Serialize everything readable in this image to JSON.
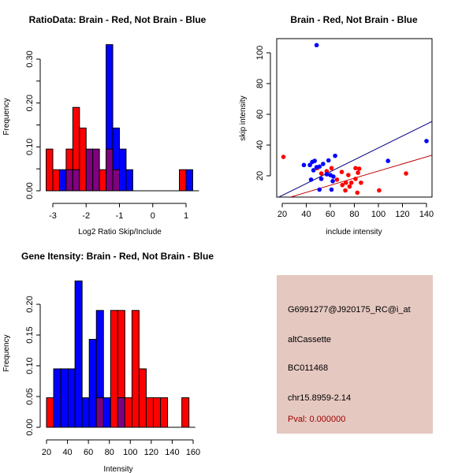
{
  "chart_data": [
    {
      "type": "bar",
      "subtype": "overlaid-histogram",
      "title": "RatioData: Brain - Red, Not Brain - Blue",
      "xlabel": "Log2 Ratio Skip/Include",
      "ylabel": "Frequency",
      "xlim": [
        -3.2,
        1.2
      ],
      "ylim": [
        0,
        0.35
      ],
      "xticks": [
        -3,
        -2,
        -1,
        0,
        1
      ],
      "xtick_labels": [
        "-3",
        "-2",
        "-1",
        "0",
        "1"
      ],
      "yticks": [
        0,
        0.1,
        0.2,
        0.3
      ],
      "ytick_labels": [
        "0.00",
        "0.10",
        "0.20",
        "0.30"
      ],
      "bin_width": 0.2,
      "bin_starts": [
        -3.2,
        -3.0,
        -2.8,
        -2.6,
        -2.4,
        -2.2,
        -2.0,
        -1.8,
        -1.6,
        -1.4,
        -1.2,
        -1.0,
        -0.8,
        -0.6,
        0.8,
        1.0
      ],
      "series": [
        {
          "name": "Brain",
          "color": "#ff0000",
          "values": [
            0.095,
            0.048,
            0,
            0.095,
            0.19,
            0.143,
            0.095,
            0.095,
            0.048,
            0.095,
            0.048,
            0,
            0,
            0,
            0.048,
            0
          ]
        },
        {
          "name": "Not Brain",
          "color": "#0000ff",
          "values": [
            0,
            0,
            0.048,
            0.048,
            0.048,
            0,
            0.095,
            0.095,
            0,
            0.333,
            0.143,
            0.095,
            0.048,
            0,
            0,
            0.048
          ]
        }
      ],
      "overlap_color": "#800080"
    },
    {
      "type": "scatter",
      "title": "Brain - Red, Not Brain - Blue",
      "xlabel": "include intensity",
      "ylabel": "skip intensity",
      "xlim": [
        15,
        145
      ],
      "ylim": [
        5,
        110
      ],
      "xticks": [
        20,
        40,
        60,
        80,
        100,
        120,
        140
      ],
      "xtick_labels": [
        "20",
        "40",
        "60",
        "80",
        "100",
        "120",
        "140"
      ],
      "yticks": [
        20,
        40,
        60,
        80,
        100
      ],
      "ytick_labels": [
        "20",
        "40",
        "60",
        "80",
        "100"
      ],
      "series": [
        {
          "name": "Brain",
          "color": "#ff0000",
          "points": [
            [
              21,
              32.3
            ],
            [
              49,
              25
            ],
            [
              57,
              23
            ],
            [
              61,
              25
            ],
            [
              65.5,
              17.5
            ],
            [
              69.5,
              22.5
            ],
            [
              73,
              15.5
            ],
            [
              75,
              20.5
            ],
            [
              77.5,
              15.5
            ],
            [
              76,
              13
            ],
            [
              81,
              18
            ],
            [
              81,
              25
            ],
            [
              83,
              22
            ],
            [
              84,
              24.6
            ],
            [
              85.5,
              15.5
            ],
            [
              82.5,
              9
            ],
            [
              72.5,
              10.5
            ],
            [
              70,
              14
            ],
            [
              100.6,
              10.5
            ],
            [
              123,
              21.5
            ],
            [
              52.5,
              21.5
            ]
          ],
          "fit_line": [
            [
              24,
              5.5
            ],
            [
              145,
              33.5
            ]
          ]
        },
        {
          "name": "Not Brain",
          "color": "#0000ff",
          "points": [
            [
              48.6,
              105
            ],
            [
              140,
              42.6
            ],
            [
              108,
              29.7
            ],
            [
              38,
              27
            ],
            [
              45,
              29
            ],
            [
              47,
              29.7
            ],
            [
              43,
              27
            ],
            [
              46,
              23.6
            ],
            [
              48.6,
              25.6
            ],
            [
              51,
              26
            ],
            [
              54,
              27.7
            ],
            [
              58.5,
              30
            ],
            [
              64,
              33
            ],
            [
              52.5,
              18
            ],
            [
              57,
              21
            ],
            [
              60,
              20.5
            ],
            [
              62.5,
              19.5
            ],
            [
              62,
              16.5
            ],
            [
              51,
              11
            ],
            [
              61,
              11
            ],
            [
              44,
              17.5
            ]
          ],
          "fit_line": [
            [
              15.5,
              5.5
            ],
            [
              145,
              55.5
            ]
          ]
        }
      ],
      "fit_line_colors": {
        "Brain": "#c00000",
        "Not Brain": "#000080"
      }
    },
    {
      "type": "bar",
      "subtype": "overlaid-histogram",
      "title": "Gene Itensity: Brain - Red, Not Brain - Blue",
      "xlabel": "Intensity",
      "ylabel": "Frequency",
      "xlim": [
        20,
        160
      ],
      "ylim": [
        0,
        0.25
      ],
      "xticks": [
        20,
        40,
        60,
        80,
        100,
        120,
        140,
        160
      ],
      "xtick_labels": [
        "20",
        "40",
        "60",
        "80",
        "100",
        "120",
        "140",
        "160"
      ],
      "yticks": [
        0,
        0.05,
        0.1,
        0.15,
        0.2
      ],
      "ytick_labels": [
        "0.00",
        "0.05",
        "0.10",
        "0.15",
        "0.20"
      ],
      "bin_width": 6.8,
      "bin_starts": [
        20,
        26.8,
        33.6,
        40.4,
        47.2,
        54,
        60.8,
        67.6,
        74.4,
        81.2,
        88,
        94.8,
        101.6,
        108.4,
        115.2,
        122,
        128.8,
        135.6,
        142.4,
        149.2
      ],
      "series": [
        {
          "name": "Brain",
          "color": "#ff0000",
          "values": [
            0.048,
            0,
            0,
            0,
            0,
            0,
            0,
            0.048,
            0,
            0.19,
            0.19,
            0.048,
            0.19,
            0.095,
            0.048,
            0.048,
            0.048,
            0,
            0,
            0.048
          ]
        },
        {
          "name": "Not Brain",
          "color": "#0000ff",
          "values": [
            0,
            0.095,
            0.095,
            0.095,
            0.238,
            0.048,
            0.143,
            0.19,
            0.048,
            0,
            0.048,
            0,
            0,
            0,
            0,
            0,
            0,
            0,
            0,
            0
          ]
        }
      ],
      "overlap_color": "#800080"
    }
  ],
  "info_panel": {
    "probe_id": "G6991277@J920175_RC@i_at",
    "event_type": "altCassette",
    "accession": "BC011468",
    "location": "chr15.8959-2.14",
    "pval": "Pval: 0.000000",
    "background_color": "#e5c8c0",
    "pval_color": "#a00000"
  }
}
